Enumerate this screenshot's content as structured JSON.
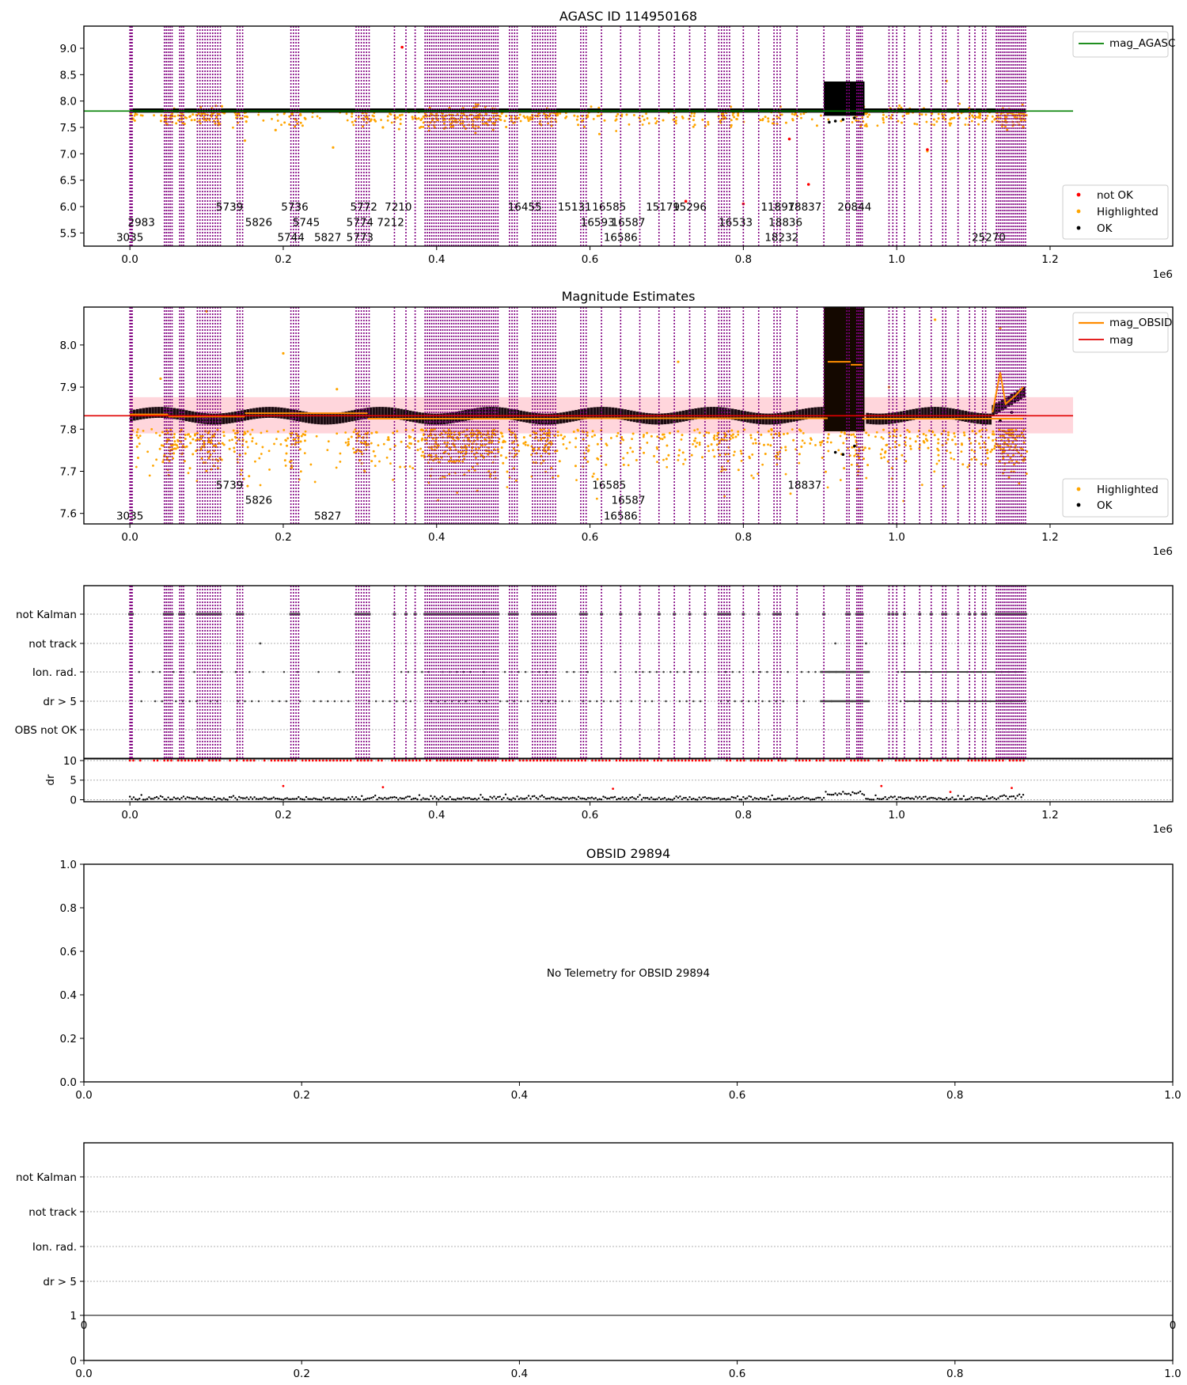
{
  "chart_data": [
    {
      "panel": "magnitude-history",
      "type": "scatter",
      "title": "AGASC ID 114950168",
      "x_offset_label": "1e6",
      "xlim": [
        -60000,
        1360000
      ],
      "ylim": [
        5.25,
        9.42
      ],
      "x_ticks": [
        0.0,
        0.2,
        0.4,
        0.6,
        0.8,
        1.0,
        1.2
      ],
      "x_tick_labels": [
        "0.0",
        "0.2",
        "0.4",
        "0.6",
        "0.8",
        "1.0",
        "1.2"
      ],
      "y_ticks": [
        5.5,
        6.0,
        6.5,
        7.0,
        7.5,
        8.0,
        8.5,
        9.0
      ],
      "y_tick_labels": [
        "5.5",
        "6.0",
        "6.5",
        "7.0",
        "7.5",
        "8.0",
        "8.5",
        "9.0"
      ],
      "reference_line": {
        "name": "mag_AGASC",
        "y": 7.81,
        "color": "#007f00"
      },
      "obsid_labels": [
        {
          "x": 0,
          "y": 5.42,
          "text": "3035"
        },
        {
          "x": 15000,
          "y": 5.71,
          "text": "2983"
        },
        {
          "x": 230000,
          "y": 5.71,
          "text": "5745"
        },
        {
          "x": 210000,
          "y": 5.42,
          "text": "5744"
        },
        {
          "x": 258000,
          "y": 5.42,
          "text": "5827"
        },
        {
          "x": 168000,
          "y": 5.71,
          "text": "5826"
        },
        {
          "x": 130000,
          "y": 6.0,
          "text": "5739"
        },
        {
          "x": 215000,
          "y": 6.0,
          "text": "5736"
        },
        {
          "x": 305000,
          "y": 6.0,
          "text": "5772"
        },
        {
          "x": 300000,
          "y": 5.71,
          "text": "5774"
        },
        {
          "x": 300000,
          "y": 5.42,
          "text": "5773"
        },
        {
          "x": 350000,
          "y": 6.0,
          "text": "7210"
        },
        {
          "x": 340000,
          "y": 5.71,
          "text": "7212"
        },
        {
          "x": 515000,
          "y": 6.0,
          "text": "16455"
        },
        {
          "x": 580000,
          "y": 6.0,
          "text": "15131"
        },
        {
          "x": 625000,
          "y": 6.0,
          "text": "16585"
        },
        {
          "x": 610000,
          "y": 5.71,
          "text": "16593"
        },
        {
          "x": 650000,
          "y": 5.71,
          "text": "16587"
        },
        {
          "x": 640000,
          "y": 5.42,
          "text": "16586"
        },
        {
          "x": 695000,
          "y": 6.0,
          "text": "15179"
        },
        {
          "x": 730000,
          "y": 6.0,
          "text": "15296"
        },
        {
          "x": 790000,
          "y": 5.71,
          "text": "16533"
        },
        {
          "x": 845000,
          "y": 6.0,
          "text": "11897"
        },
        {
          "x": 855000,
          "y": 5.71,
          "text": "18836"
        },
        {
          "x": 850000,
          "y": 5.42,
          "text": "18232"
        },
        {
          "x": 880000,
          "y": 6.0,
          "text": "18837"
        },
        {
          "x": 945000,
          "y": 6.0,
          "text": "20844"
        },
        {
          "x": 1120000,
          "y": 5.42,
          "text": "25270"
        }
      ],
      "legend": {
        "location": "lower right",
        "entries": [
          "not OK",
          "Highlighted",
          "OK"
        ]
      },
      "legend_top": {
        "location": "upper right",
        "entries": [
          "mag_AGASC"
        ]
      },
      "series": [
        {
          "name": "OK",
          "color": "#000000",
          "typical_range": [
            7.78,
            7.86
          ]
        },
        {
          "name": "Highlighted",
          "color": "#ffa500"
        },
        {
          "name": "not OK",
          "color": "#ff0000"
        }
      ]
    },
    {
      "panel": "magnitude-estimates",
      "type": "scatter",
      "title": "Magnitude Estimates",
      "x_offset_label": "1e6",
      "xlim": [
        -60000,
        1360000
      ],
      "ylim": [
        7.575,
        8.09
      ],
      "x_ticks": [
        0.0,
        0.2,
        0.4,
        0.6,
        0.8,
        1.0,
        1.2
      ],
      "x_tick_labels": [
        "0.0",
        "0.2",
        "0.4",
        "0.6",
        "0.8",
        "1.0",
        "1.2"
      ],
      "y_ticks": [
        7.6,
        7.7,
        7.8,
        7.9,
        8.0
      ],
      "y_tick_labels": [
        "7.6",
        "7.7",
        "7.8",
        "7.9",
        "8.0"
      ],
      "mean_mag": 7.832,
      "mag_band": [
        7.79,
        7.876
      ],
      "obsid_mag_segments": [
        {
          "x0": 0,
          "x1": 50000,
          "y": 7.835
        },
        {
          "x0": 50000,
          "y": 7.83,
          "x1": 150000
        },
        {
          "x0": 150000,
          "x1": 310000,
          "y": 7.838
        },
        {
          "x0": 310000,
          "x1": 560000,
          "y": 7.825
        },
        {
          "x0": 560000,
          "x1": 910000,
          "y": 7.826
        },
        {
          "x0": 910000,
          "x1": 940000,
          "y": 7.96
        },
        {
          "x0": 940000,
          "x1": 955000,
          "y": 7.953
        },
        {
          "x0": 955000,
          "x1": 1165000,
          "y": 7.825
        }
      ],
      "obsid_labels": [
        {
          "x": 0,
          "y": 7.595,
          "text": "3035"
        },
        {
          "x": 130000,
          "y": 7.668,
          "text": "5739"
        },
        {
          "x": 258000,
          "y": 7.595,
          "text": "5827"
        },
        {
          "x": 168000,
          "y": 7.632,
          "text": "5826"
        },
        {
          "x": 625000,
          "y": 7.668,
          "text": "16585"
        },
        {
          "x": 650000,
          "y": 7.632,
          "text": "16587"
        },
        {
          "x": 640000,
          "y": 7.595,
          "text": "16586"
        },
        {
          "x": 880000,
          "y": 7.668,
          "text": "18837"
        }
      ],
      "legend": {
        "location": "lower right",
        "entries": [
          "Highlighted",
          "OK"
        ]
      },
      "legend_top": {
        "location": "upper right",
        "entries": [
          "mag_OBSID",
          "mag"
        ]
      }
    },
    {
      "panel": "flags",
      "type": "scatter",
      "x_offset_label": "1e6",
      "xlim": [
        -60000,
        1360000
      ],
      "x_ticks": [
        0.0,
        0.2,
        0.4,
        0.6,
        0.8,
        1.0,
        1.2
      ],
      "x_tick_labels": [
        "0.0",
        "0.2",
        "0.4",
        "0.6",
        "0.8",
        "1.0",
        "1.2"
      ],
      "flag_rows": [
        "not Kalman",
        "not track",
        "Ion. rad.",
        "dr > 5",
        "OBS not OK"
      ],
      "dr_axis": {
        "label": "dr",
        "ylim": [
          -0.5,
          10.6
        ],
        "ticks": [
          0,
          5,
          10
        ],
        "tick_labels": [
          "0",
          "5",
          "10"
        ],
        "threshold": 10
      }
    },
    {
      "panel": "obsid-detail",
      "type": "scatter",
      "title": "OBSID 29894",
      "annotation": "No Telemetry for OBSID 29894",
      "xlim": [
        0,
        1
      ],
      "ylim": [
        0,
        1
      ],
      "x_tick_labels": [
        "0.0",
        "0.2",
        "0.4",
        "0.6",
        "0.8",
        "1.0"
      ],
      "y_tick_labels": [
        "0.0",
        "0.2",
        "0.4",
        "0.6",
        "0.8",
        "1.0"
      ]
    },
    {
      "panel": "obsid-flags",
      "type": "scatter",
      "flag_rows": [
        "not Kalman",
        "not track",
        "Ion. rad.",
        "dr > 5"
      ],
      "upper_x_tick_labels": [
        "0",
        "0"
      ],
      "lower_y_tick_labels": [
        "0",
        "1"
      ],
      "x_tick_labels": [
        "0.0",
        "0.2",
        "0.4",
        "0.6",
        "0.8",
        "1.0"
      ]
    }
  ],
  "colors": {
    "ok": "#000000",
    "highlighted": "#ffa500",
    "not_ok": "#ff0000",
    "agasc": "#007f00",
    "obsid_line": "#ff8c00",
    "mean_line": "#e00000",
    "band": "#ffd6dc",
    "vlines": "#800080",
    "flag_dots": "#444444",
    "grid": "#b0b0b0",
    "black_box": "#140800"
  }
}
